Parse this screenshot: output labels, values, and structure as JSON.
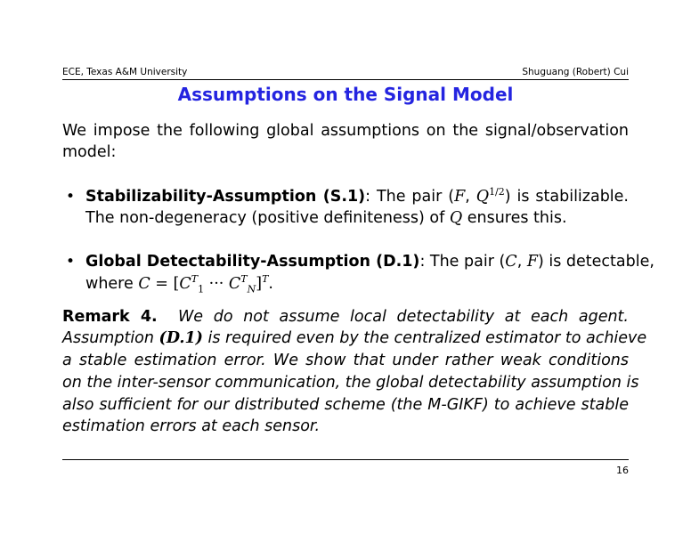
{
  "header": {
    "left": "ECE, Texas A&M University",
    "right": "Shuguang (Robert) Cui"
  },
  "title": "Assumptions on the Signal Model",
  "colors": {
    "title": "#2424e0"
  },
  "intro": [
    "We impose the following global assumptions on the signal/observation",
    "model:"
  ],
  "bullet1": {
    "bold": "Stabilizability-Assumption (S.1)",
    "l1a": ": The pair (",
    "F": "F",
    ",": ", ",
    "Q": "Q",
    "exp": "1/2",
    "l1b": ") is stabilizable.",
    "l2a": "The non-degeneracy (positive definiteness) of ",
    "l2b": " ensures this."
  },
  "bullet2": {
    "bold": "Global Detectability-Assumption (D.1)",
    "l1a": ": The pair (",
    "C": "C",
    "l1b": ") is detectable,",
    "l2a": "where ",
    "eq": " = [",
    "T": "T",
    "one": "1",
    "dots": " ··· ",
    "N": "N",
    "close": "]",
    "end": "."
  },
  "remark": {
    "label": "Remark 4.",
    "l1": "We do not assume local detectability at each agent.",
    "l2a": "Assumption ",
    "l2b": "(D.1)",
    "l2c": " is required even by the centralized estimator to achieve",
    "l3": "a stable estimation error.  We show that under rather weak conditions",
    "l4": "on the inter-sensor communication, the global detectability assumption is",
    "l5": "also sufficient for our distributed scheme (the M-GIKF) to achieve stable",
    "l6": "estimation errors at each sensor."
  },
  "page_number": "16"
}
